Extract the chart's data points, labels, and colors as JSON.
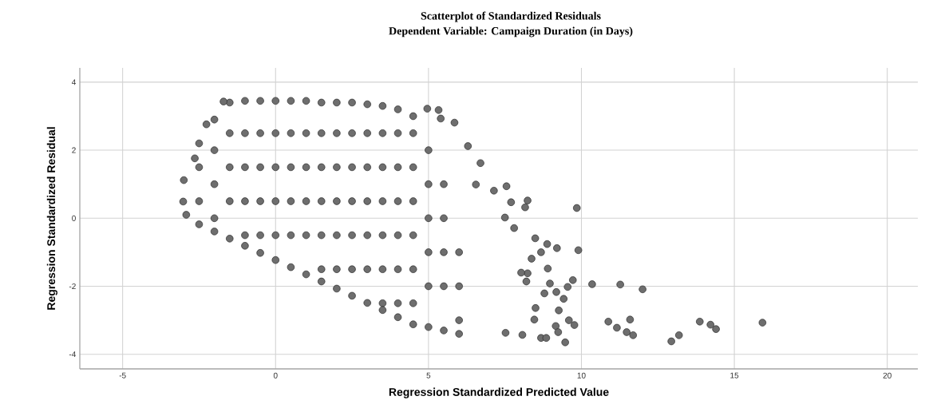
{
  "chart_data": {
    "type": "scatter",
    "title": "Scatterplot of Standardized Residuals",
    "subtitle": "Dependent Variable: Campaign Duration (in Days)",
    "xlabel": "Regression Standardized Predicted Value",
    "ylabel": "Regression Standardized Residual",
    "color": "#6e6e6e",
    "marker": "circle",
    "grid": true,
    "xlim": [
      -6.4,
      21
    ],
    "ylim": [
      -4.43,
      4.42
    ],
    "xticks": [
      -5,
      0,
      5,
      10,
      15,
      20
    ],
    "yticks": [
      -4,
      -2,
      0,
      2,
      4
    ],
    "x": [
      -2.5,
      -2.5,
      -2.5,
      -2.5,
      -2,
      -2,
      -2,
      -2,
      -2,
      -1.5,
      -1.5,
      -1.5,
      -1.5,
      -1.5,
      -1,
      -1,
      -1,
      -1,
      -1,
      -1,
      -0.5,
      -0.5,
      -0.5,
      -0.5,
      -0.5,
      -0.5,
      0,
      0,
      0,
      0,
      0,
      0,
      0.5,
      0.5,
      0.5,
      0.5,
      0.5,
      0.5,
      1,
      1,
      1,
      1,
      1,
      1,
      1.5,
      1.5,
      1.5,
      1.5,
      1.5,
      1.5,
      1.5,
      2,
      2,
      2,
      2,
      2,
      2,
      2,
      2.5,
      2.5,
      2.5,
      2.5,
      2.5,
      2.5,
      2.5,
      3,
      3,
      3,
      3,
      3,
      3,
      3,
      3.5,
      3.5,
      3.5,
      3.5,
      3.5,
      3.5,
      3.5,
      3.5,
      4,
      4,
      4,
      4,
      4,
      4,
      4,
      4,
      4.5,
      4.5,
      4.5,
      4.5,
      4.5,
      4.5,
      4.5,
      4.5,
      5,
      5,
      5,
      5,
      5,
      5,
      5.5,
      5.5,
      5.5,
      5.5,
      5.5,
      6,
      6,
      6,
      6,
      -3.0,
      -3.02,
      -2.92,
      -2.64,
      -2.26,
      -1.7,
      4.96,
      5.33,
      5.4,
      5.85,
      6.29,
      6.7,
      6.55,
      7.55,
      7.14,
      8.24,
      8.16,
      7.7,
      9.85,
      7.5,
      7.8,
      8.49,
      8.88,
      9.2,
      9.9,
      8.68,
      8.37,
      8.9,
      8.24,
      9.72,
      8.97,
      10.35,
      11.27,
      9.55,
      9.42,
      9.18,
      8.79,
      9.26,
      8.5,
      8.46,
      9.59,
      9.77,
      9.16,
      9.24,
      9.47,
      8.68,
      8.85,
      8.07,
      10.88,
      11.16,
      7.52,
      8.03,
      8.2,
      12.0,
      11.59,
      11.48,
      11.69,
      12.94,
      13.19,
      13.87,
      14.22,
      14.4,
      15.92
    ],
    "values": [
      2.2,
      1.5,
      0.5,
      -0.18,
      2.9,
      2.0,
      1.0,
      0.0,
      -0.39,
      3.4,
      2.5,
      1.5,
      0.5,
      -0.6,
      3.45,
      2.5,
      1.5,
      0.5,
      -0.5,
      -0.81,
      3.45,
      2.5,
      1.5,
      0.5,
      -0.5,
      -1.02,
      3.45,
      2.5,
      1.5,
      0.5,
      -0.5,
      -1.23,
      3.45,
      2.5,
      1.5,
      0.5,
      -0.5,
      -1.44,
      3.45,
      2.5,
      1.5,
      0.5,
      -0.5,
      -1.65,
      3.4,
      2.5,
      1.5,
      0.5,
      -0.5,
      -1.5,
      -1.86,
      3.4,
      2.5,
      1.5,
      0.5,
      -0.5,
      -1.5,
      -2.07,
      3.4,
      2.5,
      1.5,
      0.5,
      -0.5,
      -1.5,
      -2.28,
      3.35,
      2.5,
      1.5,
      0.5,
      -0.5,
      -1.5,
      -2.49,
      3.3,
      2.5,
      1.5,
      0.5,
      -0.5,
      -1.5,
      -2.5,
      -2.7,
      3.2,
      2.5,
      1.5,
      0.5,
      -0.5,
      -1.5,
      -2.5,
      -2.91,
      3.0,
      2.5,
      1.5,
      0.5,
      -0.5,
      -1.5,
      -2.5,
      -3.12,
      2.0,
      1.0,
      0.0,
      -1.0,
      -2.0,
      -3.2,
      1.0,
      0.0,
      -1.0,
      -2.0,
      -3.3,
      -1.0,
      -2.0,
      -3.0,
      -3.4,
      1.12,
      0.49,
      0.1,
      1.76,
      2.76,
      3.43,
      3.22,
      3.18,
      2.93,
      2.81,
      2.12,
      1.62,
      0.99,
      0.94,
      0.81,
      0.52,
      0.32,
      0.47,
      0.3,
      0.02,
      -0.29,
      -0.59,
      -0.76,
      -0.88,
      -0.94,
      -1.0,
      -1.19,
      -1.48,
      -1.62,
      -1.82,
      -1.92,
      -1.94,
      -1.95,
      -2.02,
      -2.37,
      -2.17,
      -2.21,
      -2.71,
      -2.64,
      -2.98,
      -3.0,
      -3.14,
      -3.17,
      -3.35,
      -3.65,
      -3.52,
      -3.52,
      -3.43,
      -3.04,
      -3.22,
      -3.37,
      -1.6,
      -1.86,
      -2.09,
      -2.98,
      -3.35,
      -3.44,
      -3.62,
      -3.44,
      -3.04,
      -3.13,
      -3.26,
      -3.07
    ]
  }
}
